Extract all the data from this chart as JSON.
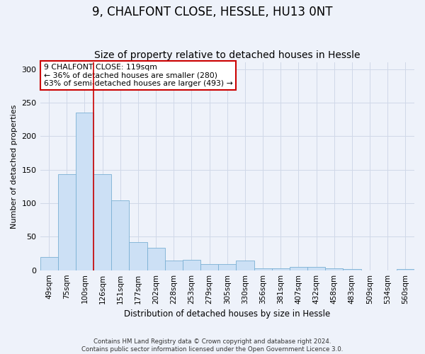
{
  "title1": "9, CHALFONT CLOSE, HESSLE, HU13 0NT",
  "title2": "Size of property relative to detached houses in Hessle",
  "xlabel": "Distribution of detached houses by size in Hessle",
  "ylabel": "Number of detached properties",
  "categories": [
    "49sqm",
    "75sqm",
    "100sqm",
    "126sqm",
    "151sqm",
    "177sqm",
    "202sqm",
    "228sqm",
    "253sqm",
    "279sqm",
    "305sqm",
    "330sqm",
    "356sqm",
    "381sqm",
    "407sqm",
    "432sqm",
    "458sqm",
    "483sqm",
    "509sqm",
    "534sqm",
    "560sqm"
  ],
  "values": [
    20,
    143,
    235,
    143,
    104,
    42,
    34,
    14,
    16,
    9,
    9,
    14,
    3,
    3,
    5,
    5,
    3,
    2,
    0,
    0,
    2
  ],
  "bar_color": "#cce0f5",
  "bar_edge_color": "#7ab0d4",
  "grid_color": "#d0d8e8",
  "background_color": "#eef2fa",
  "red_line_x": 2.5,
  "annotation_line1": "9 CHALFONT CLOSE: 119sqm",
  "annotation_line2": "← 36% of detached houses are smaller (280)",
  "annotation_line3": "63% of semi-detached houses are larger (493) →",
  "annotation_box_color": "#ffffff",
  "annotation_box_edge": "#cc0000",
  "footer_line1": "Contains HM Land Registry data © Crown copyright and database right 2024.",
  "footer_line2": "Contains public sector information licensed under the Open Government Licence 3.0.",
  "ylim": [
    0,
    310
  ],
  "yticks": [
    0,
    50,
    100,
    150,
    200,
    250,
    300
  ],
  "title1_fontsize": 12,
  "title2_fontsize": 10,
  "axis_fontsize": 8,
  "tick_fontsize": 7.5
}
